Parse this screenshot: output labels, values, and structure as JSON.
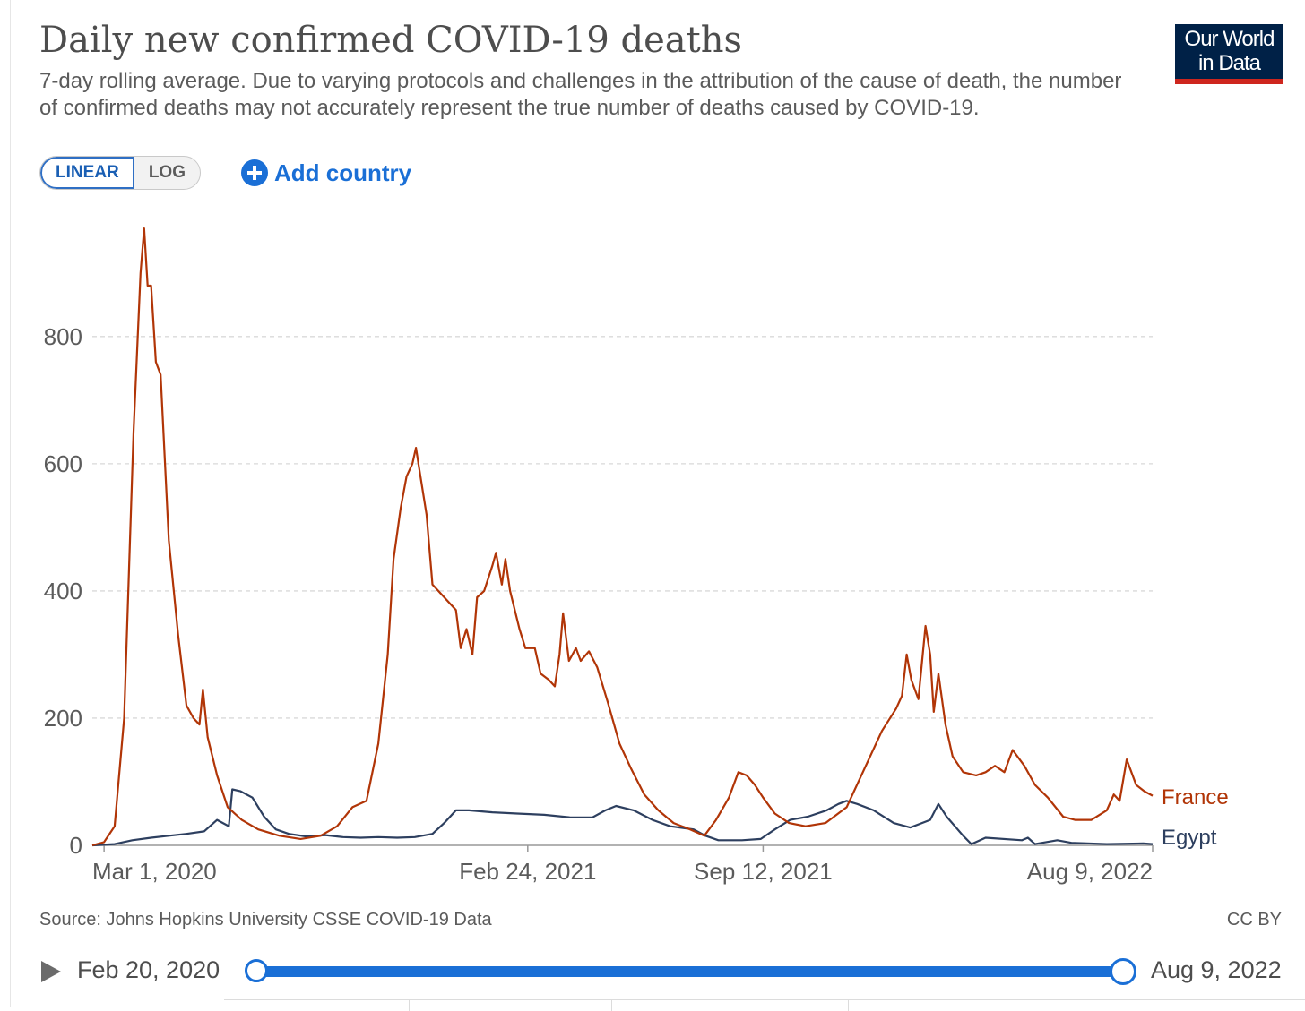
{
  "header": {
    "title": "Daily new confirmed COVID-19 deaths",
    "subtitle": "7-day rolling average. Due to varying protocols and challenges in the attribution of the cause of death, the number of confirmed deaths may not accurately represent the true number of deaths caused by COVID-19."
  },
  "logo": {
    "line1": "Our World",
    "line2": "in Data"
  },
  "controls": {
    "linear_label": "LINEAR",
    "log_label": "LOG",
    "add_country_label": "Add country",
    "active_scale": "linear"
  },
  "footer": {
    "source": "Source: Johns Hopkins University CSSE COVID-19 Data",
    "license": "CC BY"
  },
  "timeline": {
    "start_label": "Feb 20, 2020",
    "end_label": "Aug 9, 2022"
  },
  "colors": {
    "france": "#b13507",
    "egypt": "#2d3f5f",
    "gridline": "#d9d9d9",
    "axis_text": "#5b5b5b",
    "accent": "#1a6fd6"
  },
  "chart_data": {
    "type": "line",
    "x_type": "date",
    "xlim": [
      "2020-02-20",
      "2022-08-09"
    ],
    "ylim": [
      0,
      980
    ],
    "y_ticks": [
      0,
      200,
      400,
      600,
      800
    ],
    "x_ticks": [
      {
        "date": "2020-03-01",
        "label": "Mar 1, 2020"
      },
      {
        "date": "2021-02-24",
        "label": "Feb 24, 2021"
      },
      {
        "date": "2021-09-12",
        "label": "Sep 12, 2021"
      },
      {
        "date": "2022-08-09",
        "label": "Aug 9, 2022"
      }
    ],
    "grid": "horizontal dashed",
    "legend": "inline line labels at right end",
    "series": [
      {
        "name": "France",
        "points": [
          [
            "2020-02-20",
            0
          ],
          [
            "2020-03-01",
            5
          ],
          [
            "2020-03-10",
            30
          ],
          [
            "2020-03-18",
            200
          ],
          [
            "2020-03-26",
            650
          ],
          [
            "2020-04-01",
            900
          ],
          [
            "2020-04-04",
            970
          ],
          [
            "2020-04-07",
            880
          ],
          [
            "2020-04-10",
            880
          ],
          [
            "2020-04-14",
            760
          ],
          [
            "2020-04-18",
            740
          ],
          [
            "2020-04-25",
            480
          ],
          [
            "2020-05-03",
            330
          ],
          [
            "2020-05-10",
            220
          ],
          [
            "2020-05-16",
            200
          ],
          [
            "2020-05-21",
            190
          ],
          [
            "2020-05-24",
            245
          ],
          [
            "2020-05-28",
            170
          ],
          [
            "2020-06-05",
            110
          ],
          [
            "2020-06-14",
            60
          ],
          [
            "2020-06-26",
            40
          ],
          [
            "2020-07-10",
            25
          ],
          [
            "2020-07-28",
            15
          ],
          [
            "2020-08-15",
            10
          ],
          [
            "2020-09-01",
            15
          ],
          [
            "2020-09-15",
            30
          ],
          [
            "2020-09-28",
            60
          ],
          [
            "2020-10-10",
            70
          ],
          [
            "2020-10-20",
            160
          ],
          [
            "2020-10-28",
            300
          ],
          [
            "2020-11-02",
            450
          ],
          [
            "2020-11-08",
            530
          ],
          [
            "2020-11-13",
            580
          ],
          [
            "2020-11-18",
            600
          ],
          [
            "2020-11-21",
            625
          ],
          [
            "2020-11-24",
            590
          ],
          [
            "2020-11-30",
            520
          ],
          [
            "2020-12-05",
            410
          ],
          [
            "2020-12-15",
            390
          ],
          [
            "2020-12-25",
            370
          ],
          [
            "2020-12-29",
            310
          ],
          [
            "2021-01-03",
            340
          ],
          [
            "2021-01-08",
            300
          ],
          [
            "2021-01-12",
            390
          ],
          [
            "2021-01-18",
            400
          ],
          [
            "2021-01-25",
            440
          ],
          [
            "2021-01-28",
            460
          ],
          [
            "2021-02-02",
            410
          ],
          [
            "2021-02-05",
            450
          ],
          [
            "2021-02-09",
            400
          ],
          [
            "2021-02-17",
            340
          ],
          [
            "2021-02-22",
            310
          ],
          [
            "2021-03-02",
            310
          ],
          [
            "2021-03-07",
            270
          ],
          [
            "2021-03-14",
            260
          ],
          [
            "2021-03-19",
            250
          ],
          [
            "2021-03-23",
            300
          ],
          [
            "2021-03-26",
            365
          ],
          [
            "2021-03-31",
            290
          ],
          [
            "2021-04-06",
            310
          ],
          [
            "2021-04-10",
            290
          ],
          [
            "2021-04-17",
            305
          ],
          [
            "2021-04-24",
            280
          ],
          [
            "2021-05-03",
            225
          ],
          [
            "2021-05-13",
            160
          ],
          [
            "2021-05-23",
            120
          ],
          [
            "2021-06-03",
            80
          ],
          [
            "2021-06-15",
            55
          ],
          [
            "2021-06-28",
            35
          ],
          [
            "2021-07-12",
            25
          ],
          [
            "2021-07-24",
            15
          ],
          [
            "2021-08-03",
            40
          ],
          [
            "2021-08-14",
            75
          ],
          [
            "2021-08-22",
            115
          ],
          [
            "2021-08-29",
            110
          ],
          [
            "2021-09-05",
            95
          ],
          [
            "2021-09-12",
            75
          ],
          [
            "2021-09-22",
            50
          ],
          [
            "2021-10-04",
            35
          ],
          [
            "2021-10-18",
            30
          ],
          [
            "2021-11-04",
            35
          ],
          [
            "2021-11-22",
            60
          ],
          [
            "2021-12-07",
            120
          ],
          [
            "2021-12-22",
            180
          ],
          [
            "2022-01-03",
            215
          ],
          [
            "2022-01-08",
            235
          ],
          [
            "2022-01-12",
            300
          ],
          [
            "2022-01-16",
            260
          ],
          [
            "2022-01-22",
            230
          ],
          [
            "2022-01-28",
            345
          ],
          [
            "2022-02-01",
            300
          ],
          [
            "2022-02-04",
            210
          ],
          [
            "2022-02-08",
            270
          ],
          [
            "2022-02-14",
            190
          ],
          [
            "2022-02-20",
            140
          ],
          [
            "2022-03-01",
            115
          ],
          [
            "2022-03-12",
            110
          ],
          [
            "2022-03-20",
            115
          ],
          [
            "2022-03-28",
            125
          ],
          [
            "2022-04-05",
            115
          ],
          [
            "2022-04-12",
            150
          ],
          [
            "2022-04-22",
            125
          ],
          [
            "2022-05-01",
            95
          ],
          [
            "2022-05-12",
            75
          ],
          [
            "2022-05-25",
            45
          ],
          [
            "2022-06-04",
            40
          ],
          [
            "2022-06-18",
            40
          ],
          [
            "2022-07-01",
            55
          ],
          [
            "2022-07-07",
            80
          ],
          [
            "2022-07-12",
            70
          ],
          [
            "2022-07-18",
            135
          ],
          [
            "2022-07-26",
            95
          ],
          [
            "2022-08-02",
            85
          ],
          [
            "2022-08-09",
            78
          ]
        ]
      },
      {
        "name": "Egypt",
        "points": [
          [
            "2020-02-20",
            0
          ],
          [
            "2020-03-10",
            2
          ],
          [
            "2020-03-25",
            8
          ],
          [
            "2020-04-10",
            12
          ],
          [
            "2020-04-25",
            15
          ],
          [
            "2020-05-10",
            18
          ],
          [
            "2020-05-25",
            22
          ],
          [
            "2020-06-05",
            40
          ],
          [
            "2020-06-15",
            30
          ],
          [
            "2020-06-18",
            88
          ],
          [
            "2020-06-25",
            85
          ],
          [
            "2020-07-05",
            75
          ],
          [
            "2020-07-15",
            45
          ],
          [
            "2020-07-25",
            25
          ],
          [
            "2020-08-05",
            18
          ],
          [
            "2020-08-20",
            14
          ],
          [
            "2020-09-05",
            16
          ],
          [
            "2020-09-20",
            13
          ],
          [
            "2020-10-05",
            12
          ],
          [
            "2020-10-20",
            13
          ],
          [
            "2020-11-05",
            12
          ],
          [
            "2020-11-20",
            13
          ],
          [
            "2020-12-05",
            18
          ],
          [
            "2020-12-15",
            35
          ],
          [
            "2020-12-25",
            55
          ],
          [
            "2021-01-05",
            55
          ],
          [
            "2021-01-25",
            52
          ],
          [
            "2021-02-15",
            50
          ],
          [
            "2021-03-10",
            48
          ],
          [
            "2021-04-01",
            44
          ],
          [
            "2021-04-20",
            44
          ],
          [
            "2021-05-01",
            55
          ],
          [
            "2021-05-10",
            62
          ],
          [
            "2021-05-25",
            55
          ],
          [
            "2021-06-10",
            40
          ],
          [
            "2021-06-25",
            30
          ],
          [
            "2021-07-15",
            25
          ],
          [
            "2021-07-25",
            15
          ],
          [
            "2021-08-05",
            8
          ],
          [
            "2021-08-25",
            8
          ],
          [
            "2021-09-10",
            10
          ],
          [
            "2021-09-22",
            25
          ],
          [
            "2021-10-05",
            40
          ],
          [
            "2021-10-20",
            45
          ],
          [
            "2021-11-05",
            55
          ],
          [
            "2021-11-15",
            65
          ],
          [
            "2021-11-22",
            70
          ],
          [
            "2021-12-01",
            65
          ],
          [
            "2021-12-15",
            55
          ],
          [
            "2022-01-01",
            35
          ],
          [
            "2022-01-15",
            28
          ],
          [
            "2022-02-01",
            40
          ],
          [
            "2022-02-08",
            65
          ],
          [
            "2022-02-15",
            45
          ],
          [
            "2022-03-01",
            15
          ],
          [
            "2022-03-08",
            2
          ],
          [
            "2022-03-20",
            12
          ],
          [
            "2022-04-20",
            8
          ],
          [
            "2022-04-25",
            12
          ],
          [
            "2022-05-01",
            2
          ],
          [
            "2022-05-20",
            8
          ],
          [
            "2022-06-01",
            4
          ],
          [
            "2022-07-01",
            2
          ],
          [
            "2022-08-01",
            3
          ],
          [
            "2022-08-09",
            2
          ]
        ]
      }
    ]
  }
}
